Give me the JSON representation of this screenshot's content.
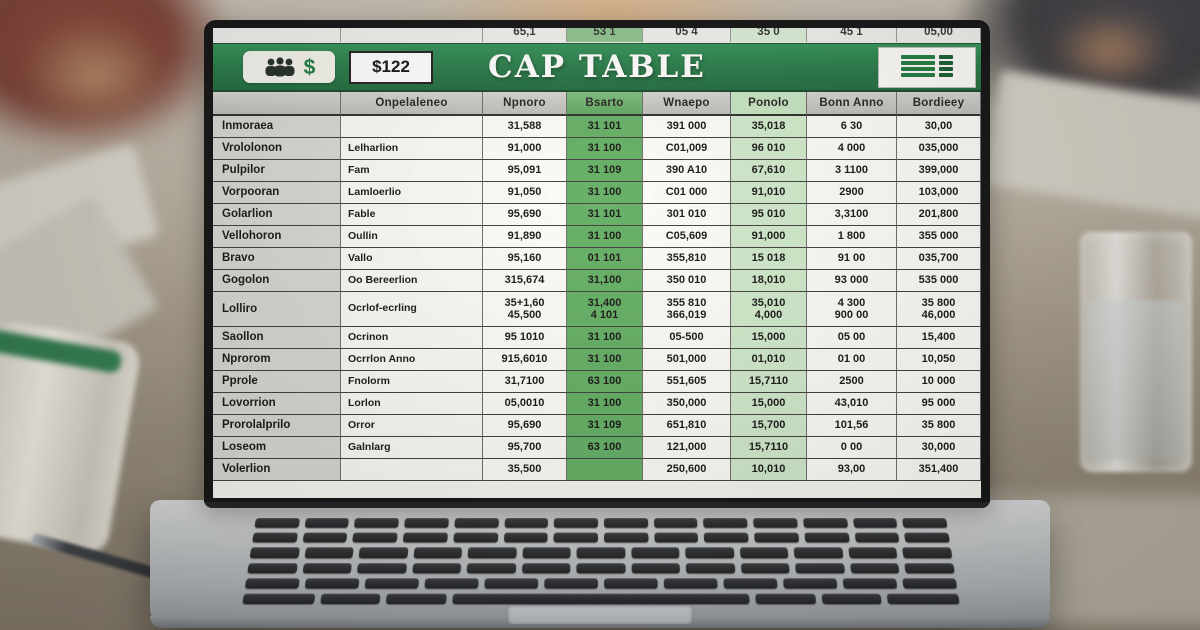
{
  "screen": {
    "top_strip": [
      "65,1",
      "53 1",
      "05 4",
      "35 0",
      "45 1",
      "05,00"
    ],
    "title_bar": {
      "title": "CAP TABLE",
      "amount_cell": "$122",
      "dollar_symbol": "$"
    },
    "table": {
      "columns": [
        "",
        "Onpelaleneo",
        "Npnoro",
        "Bsarto",
        "Wnaepo",
        "Ponolo",
        "Bonn Anno",
        "Bordieey"
      ],
      "rows": [
        {
          "label": "Inmoraea",
          "sub": "",
          "values": [
            "31,588",
            "31 101",
            "391 000",
            "35,018",
            "6 30",
            "30,00"
          ]
        },
        {
          "label": "Vrololonon",
          "sub": "Lelharlion",
          "values": [
            "91,000",
            "31 100",
            "C01,009",
            "96 010",
            "4 000",
            "035,000"
          ]
        },
        {
          "label": "Pulpilor",
          "sub": "Fam",
          "values": [
            "95,091",
            "31 109",
            "390 A10",
            "67,610",
            "3 1100",
            "399,000"
          ]
        },
        {
          "label": "Vorpooran",
          "sub": "Lamloerlio",
          "values": [
            "91,050",
            "31 100",
            "C01 000",
            "91,010",
            "2900",
            "103,000"
          ]
        },
        {
          "label": "Golarlion",
          "sub": "Fable",
          "values": [
            "95,690",
            "31 101",
            "301 010",
            "95 010",
            "3,3100",
            "201,800"
          ]
        },
        {
          "label": "Vellohoron",
          "sub": "Oullin",
          "values": [
            "91,890",
            "31 100",
            "C05,609",
            "91,000",
            "1 800",
            "355 000"
          ]
        },
        {
          "label": "Bravo",
          "sub": "Vallo",
          "values": [
            "95,160",
            "01 101",
            "355,810",
            "15 018",
            "91 00",
            "035,700"
          ]
        },
        {
          "label": "Gogolon",
          "sub": "Oo Bereerlion",
          "values": [
            "315,674",
            "31,100",
            "350 010",
            "18,010",
            "93 000",
            "535 000"
          ]
        },
        {
          "label": "Lolliro",
          "sub": "Ocrlof-ecrling",
          "tall": true,
          "values": [
            "35+1,60\n45,500",
            "31,400\n4 101",
            "355 810\n366,019",
            "35,010\n4,000",
            "4 300\n900 00",
            "35 800\n46,000"
          ]
        },
        {
          "label": "Saollon",
          "sub": "Ocrinon",
          "values": [
            "95 1010",
            "31 100",
            "05-500",
            "15,000",
            "05 00",
            "15,400"
          ]
        },
        {
          "label": "Nprorom",
          "sub": "Ocrrlon Anno",
          "values": [
            "915,6010",
            "31 100",
            "501,000",
            "01,010",
            "01 00",
            "10,050"
          ]
        },
        {
          "label": "Pprole",
          "sub": "Fnolorm",
          "values": [
            "31,7100",
            "63 100",
            "551,605",
            "15,7110",
            "2500",
            "10 000"
          ]
        },
        {
          "label": "Lovorrion",
          "sub": "Lorlon",
          "values": [
            "05,0010",
            "31 100",
            "350,000",
            "15,000",
            "43,010",
            "95 000"
          ]
        },
        {
          "label": "Prorolalprilo",
          "sub": "Orror",
          "values": [
            "95,690",
            "31 109",
            "651,810",
            "15,700",
            "101,56",
            "35 800"
          ]
        },
        {
          "label": "Loseom",
          "sub": "Galnlarg",
          "values": [
            "95,700",
            "63 100",
            "121,000",
            "15,7110",
            "0 00",
            "30,000"
          ]
        },
        {
          "label": "Volerlion",
          "sub": "",
          "values": [
            "35,500",
            "",
            "250,600",
            "10,010",
            "93,00",
            "351,400"
          ]
        }
      ]
    }
  },
  "colors": {
    "title_bar_green": "#237747",
    "highlight_green": "#5fae63",
    "highlight_light_green": "#cfeacd",
    "header_gray": "#c6c6c4",
    "label_gray": "#d7d7d4"
  },
  "icons": [
    "people-icon",
    "dollar-icon",
    "spreadsheet-icon"
  ]
}
